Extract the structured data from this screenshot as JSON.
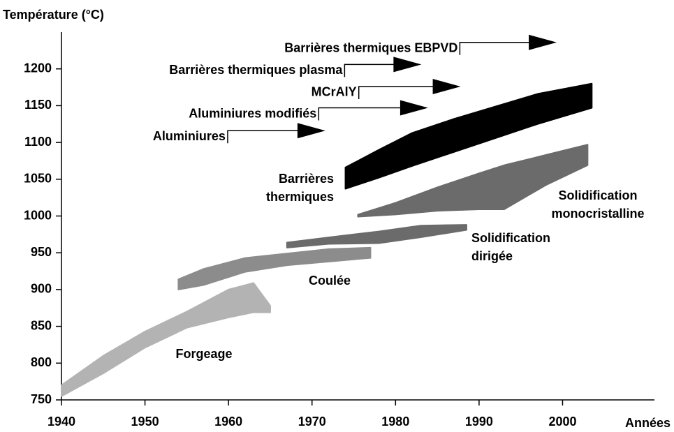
{
  "chart_data": {
    "type": "range-area",
    "y_label": "Température (°C)",
    "x_label": "Années",
    "xlim": [
      1940,
      2011
    ],
    "xticks": [
      1940,
      1950,
      1960,
      1970,
      1980,
      1990,
      2000
    ],
    "ylim": [
      750,
      1250
    ],
    "yticks": [
      750,
      800,
      850,
      900,
      950,
      1000,
      1050,
      1100,
      1150,
      1200
    ],
    "series": [
      {
        "name": "Forgeage",
        "color": "#b3b3b3",
        "x": [
          1940,
          1945,
          1950,
          1955,
          1960,
          1963,
          1965
        ],
        "high": [
          770,
          810,
          843,
          870,
          900,
          909,
          878
        ],
        "low": [
          755,
          786,
          821,
          848,
          862,
          869,
          869
        ]
      },
      {
        "name": "Coulée",
        "color": "#8c8c8c",
        "x": [
          1954,
          1957,
          1962,
          1967,
          1972,
          1977
        ],
        "high": [
          914,
          928,
          943,
          949,
          955,
          957
        ],
        "low": [
          900,
          906,
          924,
          933,
          938,
          943
        ]
      },
      {
        "name": "Solidification dirigée",
        "color": "#6b6b6b",
        "x": [
          1967,
          1972,
          1978,
          1983,
          1988.5
        ],
        "high": [
          964,
          971,
          979,
          987,
          988
        ],
        "low": [
          957,
          962,
          963,
          971,
          981
        ]
      },
      {
        "name": "Solidification monocristalline",
        "color": "#6b6b6b",
        "x": [
          1975.5,
          1980,
          1985,
          1990,
          1993,
          1998,
          2003
        ],
        "high": [
          1002,
          1018,
          1039,
          1058,
          1069,
          1083,
          1097
        ],
        "low": [
          999,
          1002,
          1007,
          1009,
          1009,
          1042,
          1069
        ]
      },
      {
        "name": "Barrières thermiques",
        "color": "#000000",
        "x": [
          1974,
          1978,
          1982,
          1987,
          1992,
          1997,
          2003.5
        ],
        "high": [
          1066,
          1090,
          1113,
          1132,
          1149,
          1166,
          1180
        ],
        "low": [
          1037,
          1052,
          1068,
          1087,
          1106,
          1125,
          1147
        ]
      }
    ],
    "annotations": [
      {
        "text": "Barrières thermiques EBPVD",
        "x": 1987.7,
        "x_end": 1999.3,
        "y": 1236
      },
      {
        "text": "Barrières thermiques plasma",
        "x": 1973.9,
        "x_end": 1983.1,
        "y": 1206
      },
      {
        "text": "MCrAlY",
        "x": 1975.6,
        "x_end": 1987.8,
        "y": 1176
      },
      {
        "text": "Aluminiures modifiés",
        "x": 1970.8,
        "x_end": 1983.9,
        "y": 1147
      },
      {
        "text": "Aluminiures",
        "x": 1959.9,
        "x_end": 1971.6,
        "y": 1116
      }
    ]
  }
}
